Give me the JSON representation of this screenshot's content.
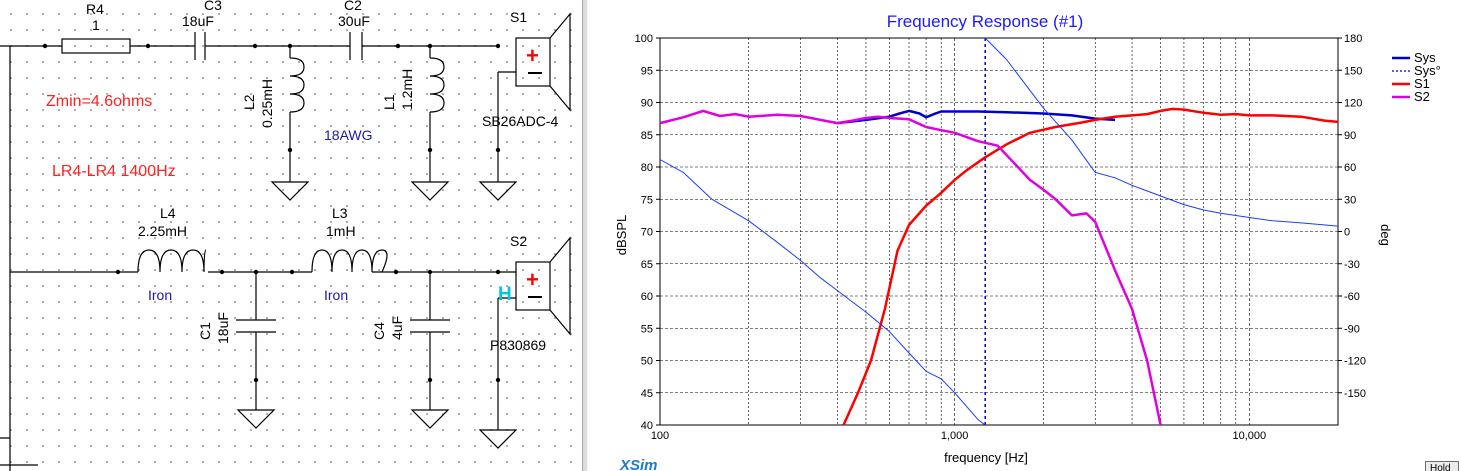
{
  "schematic": {
    "components": {
      "r4": {
        "ref": "R4",
        "value": "1"
      },
      "c3": {
        "ref": "C3",
        "value": "18uF"
      },
      "c2": {
        "ref": "C2",
        "value": "30uF"
      },
      "l2": {
        "ref": "L2",
        "value": "0.25mH"
      },
      "l1": {
        "ref": "L1",
        "value": "1.2mH"
      },
      "s1": {
        "ref": "S1",
        "model": "SB26ADC-4"
      },
      "l4": {
        "ref": "L4",
        "value": "2.25mH",
        "core": "Iron"
      },
      "l3": {
        "ref": "L3",
        "value": "1mH",
        "core": "Iron"
      },
      "c1": {
        "ref": "C1",
        "value": "18uF"
      },
      "c4": {
        "ref": "C4",
        "value": "4uF"
      },
      "s2": {
        "ref": "S2",
        "model": "P830869",
        "flag": "H"
      }
    },
    "notes": {
      "zmin": "Zmin=4.6ohms",
      "crossover": "LR4-LR4 1400Hz",
      "wire_gauge": "18AWG"
    },
    "colors": {
      "wire": "#000000",
      "note": "#ff2020",
      "blue_label": "#1a1aa8",
      "cyan_label": "#00c8d8",
      "plus": "#ff0000"
    }
  },
  "graph": {
    "title": "Frequency Response (#1)",
    "xlabel": "frequency [Hz]",
    "ylabel_left": "dBSPL",
    "ylabel_right": "deg",
    "brand": "XSim",
    "hold_label": "Hold"
  },
  "chart_data": {
    "type": "line",
    "title": "Frequency Response (#1)",
    "xlabel": "frequency [Hz]",
    "ylabel": "dBSPL",
    "y2label": "deg",
    "xscale": "log",
    "xlim": [
      100,
      20000
    ],
    "ylim": [
      40,
      100
    ],
    "y2lim": [
      -180,
      180
    ],
    "x_ticks": [
      100,
      1000,
      10000
    ],
    "x_tick_labels": [
      "100",
      "1,000",
      "10,000"
    ],
    "y_ticks": [
      40,
      45,
      50,
      55,
      60,
      65,
      70,
      75,
      80,
      85,
      90,
      95,
      100
    ],
    "y2_ticks": [
      -150,
      -120,
      -90,
      -60,
      -30,
      0,
      30,
      60,
      90,
      120,
      150,
      180
    ],
    "grid": true,
    "legend_position": "right",
    "series": [
      {
        "name": "Sys",
        "axis": "left",
        "color": "#0000cc",
        "style": "solid",
        "width": 2.5,
        "x": [
          400,
          500,
          600,
          650,
          700,
          760,
          800,
          850,
          900,
          1000,
          1200,
          1500,
          2000,
          2500,
          3000,
          3500
        ],
        "y": [
          86.8,
          87.3,
          87.8,
          88.3,
          88.7,
          88.3,
          87.7,
          88.2,
          88.6,
          88.6,
          88.6,
          88.5,
          88.3,
          88.0,
          87.5,
          87.3
        ]
      },
      {
        "name": "Sys°",
        "axis": "right",
        "color": "#0000cc",
        "style": "dotted",
        "width": 1.5,
        "x": [
          1270,
          1270
        ],
        "y": [
          -180,
          180
        ]
      },
      {
        "name": "S1",
        "axis": "left",
        "color": "#ff0000",
        "style": "solid",
        "width": 2.5,
        "x": [
          420,
          470,
          520,
          580,
          640,
          700,
          800,
          900,
          1000,
          1100,
          1270,
          1500,
          1800,
          2200,
          2700,
          3000,
          3500,
          4000,
          4500,
          5000,
          5500,
          6000,
          7000,
          8000,
          9000,
          10000,
          12000,
          15000,
          18000,
          20000
        ],
        "y": [
          40,
          45,
          50,
          58,
          67,
          71,
          74,
          76,
          78,
          79.5,
          81.5,
          83.5,
          85.3,
          86.2,
          86.9,
          87.3,
          87.8,
          88.0,
          88.2,
          88.7,
          89.0,
          88.9,
          88.4,
          88.1,
          88.2,
          88.0,
          88.0,
          87.8,
          87.2,
          87.0
        ]
      },
      {
        "name": "S2",
        "axis": "left",
        "color": "#e000e0",
        "style": "solid",
        "width": 2.5,
        "x": [
          100,
          120,
          140,
          160,
          180,
          200,
          250,
          300,
          350,
          400,
          450,
          500,
          550,
          600,
          650,
          700,
          800,
          900,
          1000,
          1200,
          1400,
          1600,
          1800,
          2000,
          2200,
          2500,
          2800,
          3000,
          3500,
          4000,
          4500,
          5000
        ],
        "y": [
          86.8,
          87.7,
          88.7,
          87.9,
          88.2,
          87.8,
          88.1,
          87.9,
          87.3,
          86.8,
          87.2,
          87.6,
          87.8,
          87.6,
          87.5,
          87.4,
          86.2,
          85.7,
          85.3,
          84.0,
          83.3,
          80.5,
          78.0,
          76.5,
          75.0,
          72.5,
          72.8,
          71.5,
          64.0,
          58.0,
          50.0,
          40.0
        ]
      },
      {
        "name": "",
        "axis": "right",
        "color": "#1a3dff",
        "style": "solid",
        "width": 1,
        "x": [
          100,
          120,
          150,
          200,
          250,
          300,
          350,
          400,
          500,
          600,
          700,
          800,
          900,
          1000,
          1100,
          1200,
          1270
        ],
        "y": [
          67,
          55,
          30,
          10,
          -10,
          -27,
          -43,
          -55,
          -75,
          -93,
          -113,
          -130,
          -137,
          -150,
          -163,
          -175,
          -180
        ]
      },
      {
        "name": "",
        "axis": "right",
        "color": "#1a3dff",
        "style": "solid",
        "width": 1,
        "x": [
          1270,
          1500,
          2000,
          2500,
          3000,
          3500,
          4000,
          5000,
          6000,
          7000,
          8000,
          10000,
          12000,
          15000,
          20000
        ],
        "y": [
          180,
          160,
          115,
          85,
          55,
          50,
          43,
          33,
          25,
          20,
          17,
          13,
          10,
          8,
          5
        ]
      }
    ]
  }
}
